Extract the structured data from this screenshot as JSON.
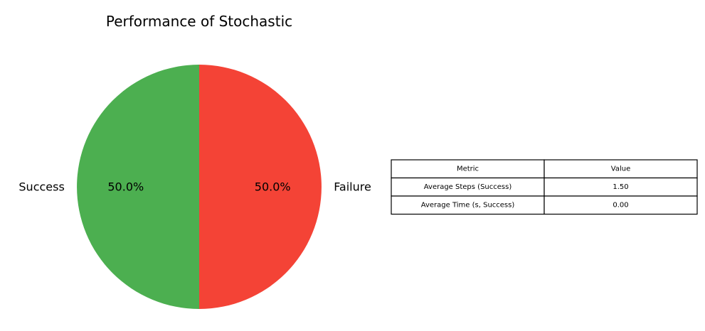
{
  "chart_data": [
    {
      "type": "pie",
      "title": "Performance of Stochastic",
      "categories": [
        "Success",
        "Failure"
      ],
      "values": [
        50,
        50
      ],
      "percent_labels": [
        "50.0%",
        "50.0%"
      ],
      "colors": [
        "#4caf50",
        "#f44336"
      ],
      "start_angle": "90° (top), counter-clockwise",
      "legend": "none"
    },
    {
      "type": "table",
      "columns": [
        "Metric",
        "Value"
      ],
      "rows": [
        [
          "Average Steps (Success)",
          "1.50"
        ],
        [
          "Average Time (s, Success)",
          "0.00"
        ]
      ]
    }
  ]
}
